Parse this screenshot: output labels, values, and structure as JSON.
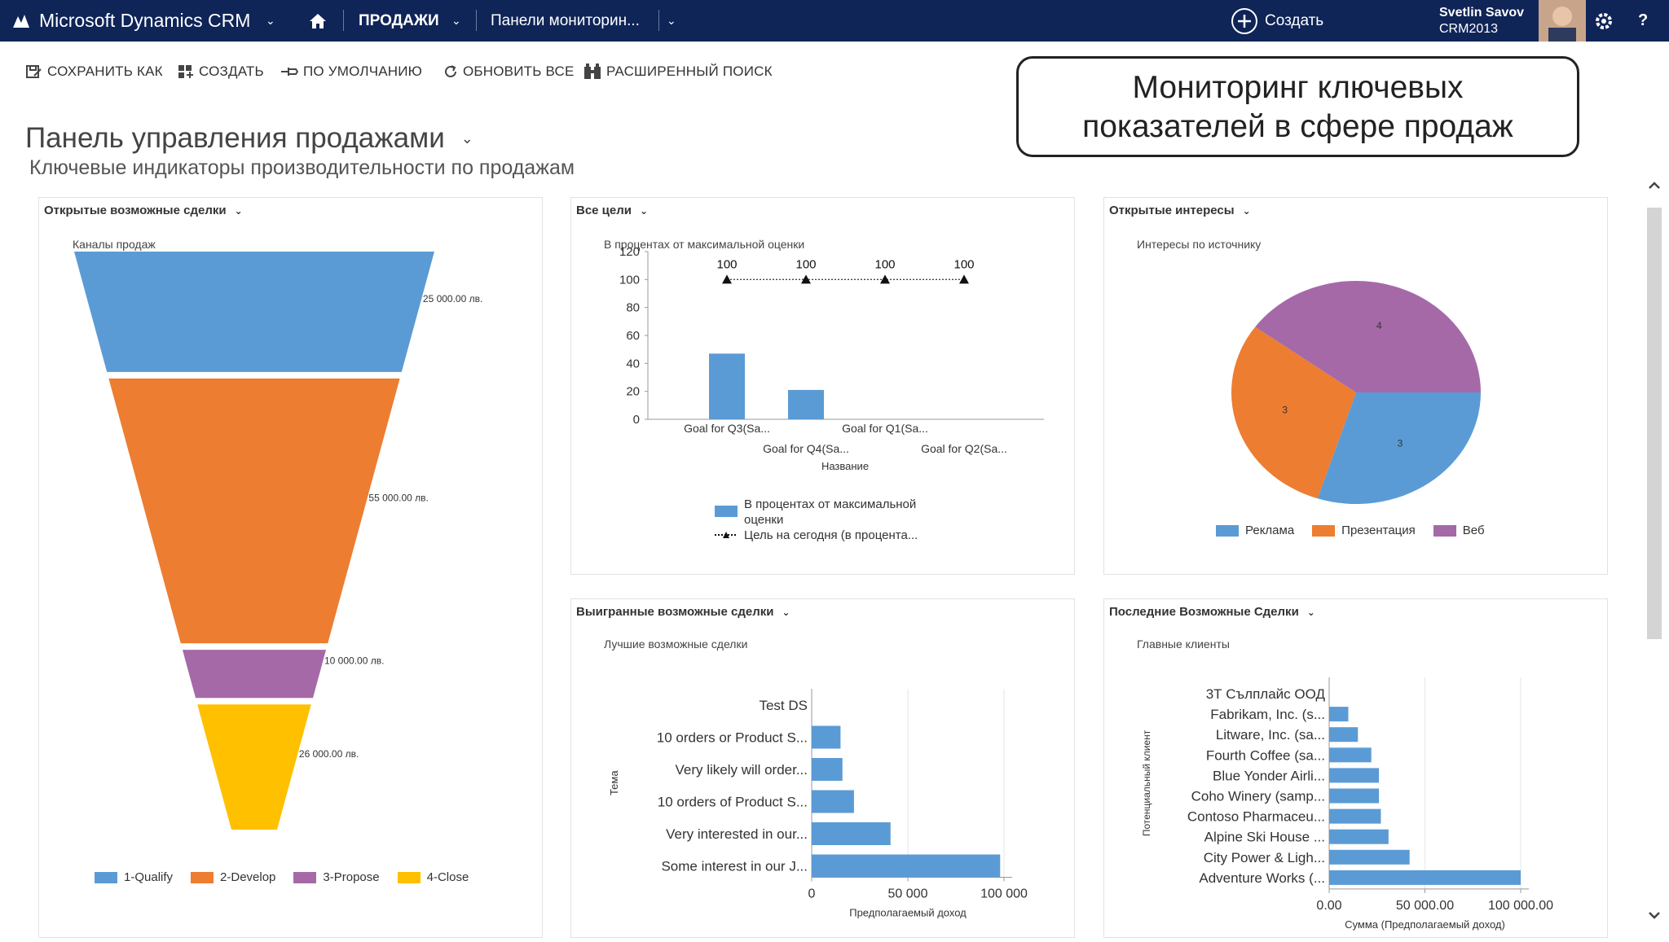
{
  "topbar": {
    "app_title": "Microsoft Dynamics CRM",
    "sales_menu": "ПРОДАЖИ",
    "dashboards_menu": "Панели мониторин...",
    "create_label": "Создать",
    "user_name": "Svetlin Savov",
    "org_name": "CRM2013",
    "help": "?"
  },
  "commands": {
    "save_as": "СОХРАНИТЬ КАК",
    "create": "СОЗДАТЬ",
    "default": "ПО УМОЛЧАНИЮ",
    "refresh_all": "ОБНОВИТЬ ВСЕ",
    "advanced_find": "РАСШИРЕННЫЙ ПОИСК"
  },
  "callout": {
    "line1": "Мониторинг ключевых",
    "line2": "показателей в сфере продаж"
  },
  "page": {
    "title": "Панель управления продажами",
    "subtitle": "Ключевые индикаторы производительности по продажам"
  },
  "panels": {
    "open_opportunities": {
      "title": "Открытые возможные сделки",
      "subtitle": "Каналы продаж"
    },
    "all_goals": {
      "title": "Все цели",
      "subtitle": "В процентах от максимальной оценки"
    },
    "open_leads": {
      "title": "Открытые интересы",
      "subtitle": "Интересы по источнику"
    },
    "won_opportunities": {
      "title": "Выигранные возможные сделки",
      "subtitle": "Лучшие возможные сделки"
    },
    "recent_opportunities": {
      "title": "Последние Возможные Сделки",
      "subtitle": "Главные клиенты"
    }
  },
  "colors": {
    "blue": "#5b9bd5",
    "orange": "#ed7d31",
    "purple": "#a569a8",
    "yellow": "#ffc000",
    "topbar": "#0f2457"
  },
  "chart_data": [
    {
      "type": "funnel",
      "categories": [
        "1-Qualify",
        "2-Develop",
        "3-Propose",
        "4-Close"
      ],
      "values": [
        25000,
        55000,
        10000,
        26000
      ],
      "value_labels": [
        "25 000.00 лв.",
        "55 000.00 лв.",
        "10 000.00 лв.",
        "26 000.00 лв."
      ],
      "legend": [
        "1-Qualify",
        "2-Develop",
        "3-Propose",
        "4-Close"
      ]
    },
    {
      "type": "bar",
      "categories": [
        "Goal for Q3(Sa...",
        "Goal for Q4(Sa...",
        "Goal for Q1(Sa...",
        "Goal for Q2(Sa..."
      ],
      "series": [
        {
          "name": "В процентах от максимальной оценки",
          "values": [
            47,
            21,
            0,
            0
          ]
        },
        {
          "name": "Цель на сегодня (в процента...",
          "values": [
            100,
            100,
            100,
            100
          ]
        }
      ],
      "point_labels": [
        "100",
        "100",
        "100",
        "100"
      ],
      "xlabel": "Название",
      "ylim": [
        0,
        120
      ],
      "yticks": [
        "120",
        "100",
        "80",
        "60",
        "40",
        "20",
        "0"
      ],
      "legend_lines": [
        "В процентах от максимальной",
        "оценки",
        "Цель на сегодня (в процента..."
      ]
    },
    {
      "type": "pie",
      "categories": [
        "Реклама",
        "Презентация",
        "Веб"
      ],
      "values": [
        3,
        3,
        4
      ],
      "value_labels": [
        "3",
        "3",
        "4"
      ]
    },
    {
      "type": "bar",
      "orientation": "horizontal",
      "categories": [
        "Test DS",
        "10 orders or Product S...",
        "Very likely will order...",
        "10 orders of Product S...",
        "Very interested in our...",
        "Some interest in our J..."
      ],
      "values": [
        0,
        15000,
        16000,
        22000,
        41000,
        98000
      ],
      "ylabel": "Тема",
      "xlabel": "Предполагаемый доход",
      "xticks": [
        "0",
        "50 000",
        "100 000"
      ],
      "xlim": [
        0,
        100000
      ]
    },
    {
      "type": "bar",
      "orientation": "horizontal",
      "categories": [
        "3Т Сълплайс ООД",
        "Fabrikam, Inc. (s...",
        "Litware, Inc. (sa...",
        "Fourth Coffee (sa...",
        "Blue Yonder Airli...",
        "Coho Winery (samp...",
        "Contoso Pharmaceu...",
        "Alpine Ski House ...",
        "City Power & Ligh...",
        "Adventure Works (..."
      ],
      "values": [
        0,
        10000,
        15000,
        22000,
        26000,
        26000,
        27000,
        31000,
        42000,
        100000
      ],
      "ylabel": "Потенциальный клиент",
      "xlabel": "Сумма (Предполагаемый доход)",
      "xticks": [
        "0.00",
        "50 000.00",
        "100 000.00"
      ],
      "xlim": [
        0,
        100000
      ]
    }
  ]
}
